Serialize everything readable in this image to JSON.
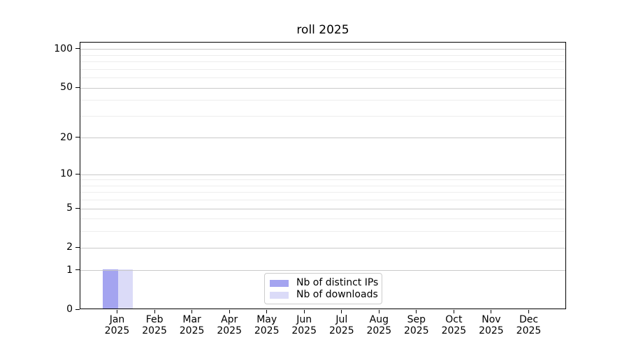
{
  "chart_data": {
    "type": "bar",
    "title": "roll 2025",
    "categories": [
      "Jan 2025",
      "Feb 2025",
      "Mar 2025",
      "Apr 2025",
      "May 2025",
      "Jun 2025",
      "Jul 2025",
      "Aug 2025",
      "Sep 2025",
      "Oct 2025",
      "Nov 2025",
      "Dec 2025"
    ],
    "series": [
      {
        "name": "Nb of distinct IPs",
        "color": "#a4a4f0",
        "values": [
          1,
          0,
          0,
          0,
          0,
          0,
          0,
          0,
          0,
          0,
          0,
          0
        ]
      },
      {
        "name": "Nb of downloads",
        "color": "#dbdbf8",
        "values": [
          1,
          0,
          0,
          0,
          0,
          0,
          0,
          0,
          0,
          0,
          0,
          0
        ]
      }
    ],
    "y_axis": {
      "scale": "log1p",
      "tick_labels": [
        0,
        1,
        2,
        5,
        10,
        20,
        50,
        100
      ],
      "minor_gridlines": [
        3,
        4,
        6,
        7,
        8,
        9,
        30,
        40,
        60,
        70,
        80,
        90
      ],
      "ylim": [
        0,
        113
      ]
    },
    "legend": {
      "position": "lower center"
    },
    "grid": {
      "major_color": "#c9c9c9",
      "minor_color": "#ededed"
    },
    "axis_color": "#000000",
    "background_color": "#ffffff"
  }
}
